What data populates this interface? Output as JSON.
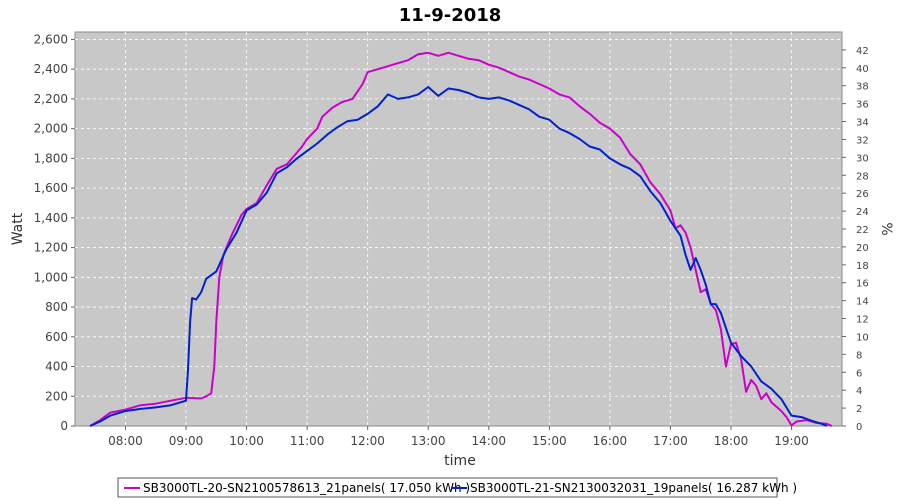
{
  "chart_data": {
    "type": "line",
    "title": "11-9-2018",
    "xlabel": "time",
    "ylabel": "Watt",
    "y2label": "%",
    "ylim": [
      0,
      2650
    ],
    "y2lim": [
      0,
      44
    ],
    "xlim": [
      "07:10",
      "19:50"
    ],
    "yticks": [
      "0",
      "200",
      "400",
      "600",
      "800",
      "1,000",
      "1,200",
      "1,400",
      "1,600",
      "1,800",
      "2,000",
      "2,200",
      "2,400",
      "2,600"
    ],
    "y2ticks": [
      "0",
      "2",
      "4",
      "6",
      "8",
      "10",
      "12",
      "14",
      "16",
      "18",
      "20",
      "22",
      "24",
      "26",
      "28",
      "30",
      "32",
      "34",
      "36",
      "38",
      "40",
      "42"
    ],
    "xticks": [
      "08:00",
      "09:00",
      "10:00",
      "11:00",
      "12:00",
      "13:00",
      "14:00",
      "15:00",
      "16:00",
      "17:00",
      "18:00",
      "19:00"
    ],
    "grid": true,
    "legend_position": "bottom",
    "plot_background": "#c8c8c8",
    "series": [
      {
        "name": "SB3000TL-20-SN2100578613_21panels( 17.050 kWh )",
        "color": "#cc00cc",
        "points": [
          [
            "07:25",
            0
          ],
          [
            "07:35",
            40
          ],
          [
            "07:45",
            90
          ],
          [
            "08:00",
            110
          ],
          [
            "08:15",
            140
          ],
          [
            "08:30",
            150
          ],
          [
            "08:45",
            170
          ],
          [
            "09:00",
            190
          ],
          [
            "09:15",
            185
          ],
          [
            "09:20",
            200
          ],
          [
            "09:25",
            220
          ],
          [
            "09:28",
            400
          ],
          [
            "09:30",
            700
          ],
          [
            "09:33",
            1000
          ],
          [
            "09:37",
            1150
          ],
          [
            "09:45",
            1280
          ],
          [
            "09:55",
            1420
          ],
          [
            "10:00",
            1460
          ],
          [
            "10:10",
            1500
          ],
          [
            "10:20",
            1620
          ],
          [
            "10:30",
            1730
          ],
          [
            "10:40",
            1760
          ],
          [
            "10:45",
            1800
          ],
          [
            "10:55",
            1880
          ],
          [
            "11:00",
            1930
          ],
          [
            "11:10",
            2000
          ],
          [
            "11:15",
            2080
          ],
          [
            "11:25",
            2140
          ],
          [
            "11:35",
            2180
          ],
          [
            "11:45",
            2200
          ],
          [
            "11:55",
            2300
          ],
          [
            "12:00",
            2380
          ],
          [
            "12:10",
            2400
          ],
          [
            "12:20",
            2420
          ],
          [
            "12:30",
            2440
          ],
          [
            "12:40",
            2460
          ],
          [
            "12:50",
            2500
          ],
          [
            "13:00",
            2510
          ],
          [
            "13:10",
            2490
          ],
          [
            "13:20",
            2510
          ],
          [
            "13:30",
            2490
          ],
          [
            "13:40",
            2470
          ],
          [
            "13:50",
            2460
          ],
          [
            "14:00",
            2430
          ],
          [
            "14:10",
            2410
          ],
          [
            "14:20",
            2380
          ],
          [
            "14:30",
            2350
          ],
          [
            "14:40",
            2330
          ],
          [
            "14:50",
            2300
          ],
          [
            "15:00",
            2270
          ],
          [
            "15:10",
            2230
          ],
          [
            "15:20",
            2210
          ],
          [
            "15:30",
            2150
          ],
          [
            "15:40",
            2100
          ],
          [
            "15:50",
            2040
          ],
          [
            "16:00",
            2000
          ],
          [
            "16:10",
            1940
          ],
          [
            "16:20",
            1830
          ],
          [
            "16:30",
            1760
          ],
          [
            "16:40",
            1640
          ],
          [
            "16:50",
            1560
          ],
          [
            "17:00",
            1450
          ],
          [
            "17:05",
            1330
          ],
          [
            "17:10",
            1350
          ],
          [
            "17:15",
            1300
          ],
          [
            "17:20",
            1200
          ],
          [
            "17:25",
            1050
          ],
          [
            "17:30",
            900
          ],
          [
            "17:35",
            920
          ],
          [
            "17:40",
            820
          ],
          [
            "17:45",
            780
          ],
          [
            "17:50",
            650
          ],
          [
            "17:55",
            400
          ],
          [
            "18:00",
            550
          ],
          [
            "18:05",
            560
          ],
          [
            "18:10",
            450
          ],
          [
            "18:15",
            230
          ],
          [
            "18:20",
            310
          ],
          [
            "18:25",
            270
          ],
          [
            "18:30",
            180
          ],
          [
            "18:35",
            220
          ],
          [
            "18:40",
            160
          ],
          [
            "18:50",
            100
          ],
          [
            "18:55",
            60
          ],
          [
            "19:00",
            5
          ],
          [
            "19:05",
            30
          ],
          [
            "19:15",
            40
          ],
          [
            "19:25",
            20
          ],
          [
            "19:35",
            15
          ],
          [
            "19:40",
            0
          ]
        ]
      },
      {
        "name": "SB3000TL-21-SN2130032031_19panels( 16.287 kWh )",
        "color": "#0022cc",
        "points": [
          [
            "07:25",
            0
          ],
          [
            "07:35",
            30
          ],
          [
            "07:45",
            70
          ],
          [
            "08:00",
            100
          ],
          [
            "08:15",
            115
          ],
          [
            "08:30",
            125
          ],
          [
            "08:45",
            140
          ],
          [
            "09:00",
            170
          ],
          [
            "09:02",
            380
          ],
          [
            "09:04",
            700
          ],
          [
            "09:06",
            860
          ],
          [
            "09:10",
            850
          ],
          [
            "09:15",
            900
          ],
          [
            "09:20",
            990
          ],
          [
            "09:30",
            1040
          ],
          [
            "09:40",
            1190
          ],
          [
            "09:50",
            1300
          ],
          [
            "10:00",
            1450
          ],
          [
            "10:10",
            1490
          ],
          [
            "10:20",
            1570
          ],
          [
            "10:30",
            1700
          ],
          [
            "10:40",
            1740
          ],
          [
            "10:50",
            1800
          ],
          [
            "11:00",
            1850
          ],
          [
            "11:10",
            1900
          ],
          [
            "11:20",
            1960
          ],
          [
            "11:30",
            2010
          ],
          [
            "11:40",
            2050
          ],
          [
            "11:50",
            2060
          ],
          [
            "12:00",
            2100
          ],
          [
            "12:10",
            2150
          ],
          [
            "12:20",
            2230
          ],
          [
            "12:30",
            2200
          ],
          [
            "12:40",
            2210
          ],
          [
            "12:50",
            2230
          ],
          [
            "13:00",
            2280
          ],
          [
            "13:10",
            2220
          ],
          [
            "13:20",
            2270
          ],
          [
            "13:30",
            2260
          ],
          [
            "13:40",
            2240
          ],
          [
            "13:50",
            2210
          ],
          [
            "14:00",
            2200
          ],
          [
            "14:10",
            2210
          ],
          [
            "14:20",
            2190
          ],
          [
            "14:30",
            2160
          ],
          [
            "14:40",
            2130
          ],
          [
            "14:50",
            2080
          ],
          [
            "15:00",
            2060
          ],
          [
            "15:10",
            2000
          ],
          [
            "15:20",
            1970
          ],
          [
            "15:30",
            1930
          ],
          [
            "15:40",
            1880
          ],
          [
            "15:50",
            1860
          ],
          [
            "16:00",
            1800
          ],
          [
            "16:10",
            1760
          ],
          [
            "16:20",
            1730
          ],
          [
            "16:30",
            1680
          ],
          [
            "16:40",
            1580
          ],
          [
            "16:50",
            1500
          ],
          [
            "17:00",
            1380
          ],
          [
            "17:10",
            1280
          ],
          [
            "17:15",
            1150
          ],
          [
            "17:20",
            1050
          ],
          [
            "17:25",
            1130
          ],
          [
            "17:30",
            1050
          ],
          [
            "17:35",
            950
          ],
          [
            "17:40",
            820
          ],
          [
            "17:45",
            820
          ],
          [
            "17:50",
            760
          ],
          [
            "17:55",
            660
          ],
          [
            "18:00",
            560
          ],
          [
            "18:10",
            470
          ],
          [
            "18:20",
            400
          ],
          [
            "18:30",
            300
          ],
          [
            "18:40",
            250
          ],
          [
            "18:50",
            180
          ],
          [
            "19:00",
            70
          ],
          [
            "19:10",
            60
          ],
          [
            "19:20",
            35
          ],
          [
            "19:30",
            15
          ],
          [
            "19:35",
            0
          ]
        ]
      }
    ]
  }
}
